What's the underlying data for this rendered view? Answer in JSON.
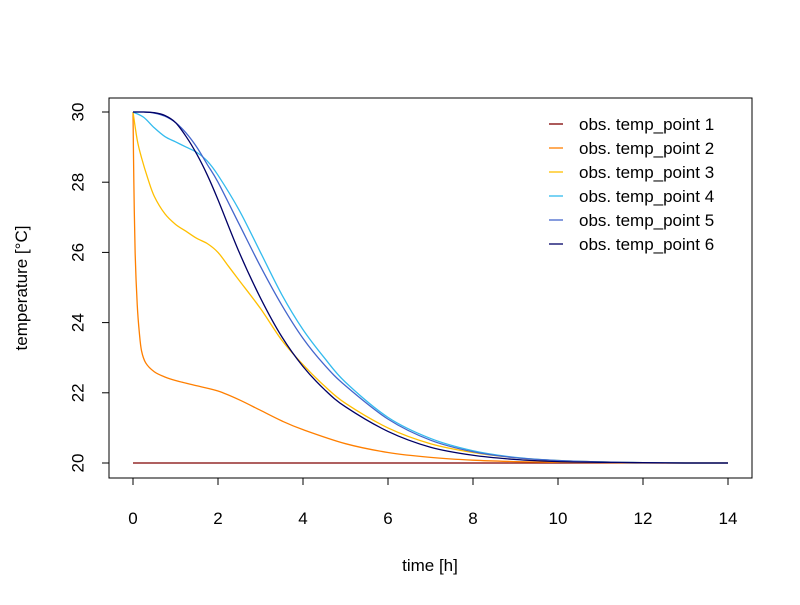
{
  "chart_data": {
    "type": "line",
    "title": "",
    "xlabel": "time [h]",
    "ylabel": "temperature [°C]",
    "xlim": [
      0,
      14
    ],
    "ylim": [
      20,
      30
    ],
    "x_ticks": [
      0,
      2,
      4,
      6,
      8,
      10,
      12,
      14
    ],
    "y_ticks": [
      20,
      22,
      24,
      26,
      28,
      30
    ],
    "x_tick_labels": [
      "0",
      "2",
      "4",
      "6",
      "8",
      "10",
      "12",
      "14"
    ],
    "y_tick_labels": [
      "20",
      "22",
      "24",
      "26",
      "28",
      "30"
    ],
    "grid": false,
    "legend_position": "top-right",
    "series": [
      {
        "name": "obs. temp_point 1",
        "color": "#7f0000",
        "x": [
          0,
          14
        ],
        "y": [
          20.0,
          20.0
        ]
      },
      {
        "name": "obs. temp_point 2",
        "color": "#ff7f00",
        "x": [
          0,
          0.02,
          0.05,
          0.1,
          0.15,
          0.2,
          0.3,
          0.5,
          0.75,
          1,
          1.5,
          2,
          2.5,
          3,
          3.5,
          4,
          5,
          6,
          7,
          8,
          9,
          10,
          11,
          12,
          13,
          14
        ],
        "y": [
          30.0,
          28.0,
          26.0,
          24.5,
          23.7,
          23.2,
          22.85,
          22.6,
          22.45,
          22.35,
          22.2,
          22.05,
          21.8,
          21.5,
          21.2,
          20.95,
          20.55,
          20.3,
          20.16,
          20.08,
          20.04,
          20.02,
          20.01,
          20.0,
          20.0,
          20.0
        ]
      },
      {
        "name": "obs. temp_point 3",
        "color": "#ffbf00",
        "x": [
          0,
          0.1,
          0.2,
          0.35,
          0.5,
          0.75,
          1,
          1.25,
          1.5,
          1.75,
          2,
          2.25,
          2.5,
          3,
          3.5,
          4,
          4.5,
          5,
          6,
          7,
          8,
          9,
          10,
          11,
          12,
          13,
          14
        ],
        "y": [
          30.0,
          29.2,
          28.7,
          28.1,
          27.6,
          27.1,
          26.8,
          26.6,
          26.4,
          26.25,
          26.0,
          25.6,
          25.2,
          24.4,
          23.5,
          22.8,
          22.2,
          21.7,
          21.0,
          20.55,
          20.3,
          20.15,
          20.07,
          20.03,
          20.01,
          20.0,
          20.0
        ]
      },
      {
        "name": "obs. temp_point 4",
        "color": "#33bbee",
        "x": [
          0,
          0.25,
          0.5,
          0.75,
          1,
          1.25,
          1.5,
          1.75,
          2,
          2.5,
          3,
          3.5,
          4,
          4.5,
          5,
          6,
          7,
          8,
          9,
          10,
          11,
          12,
          13,
          14
        ],
        "y": [
          30.0,
          29.85,
          29.55,
          29.3,
          29.15,
          29.0,
          28.85,
          28.6,
          28.2,
          27.2,
          26.0,
          24.8,
          23.8,
          23.0,
          22.3,
          21.3,
          20.7,
          20.35,
          20.16,
          20.07,
          20.03,
          20.01,
          20.0,
          20.0
        ]
      },
      {
        "name": "obs. temp_point 5",
        "color": "#4466cc",
        "x": [
          0,
          0.25,
          0.5,
          0.75,
          1,
          1.25,
          1.5,
          1.75,
          2,
          2.5,
          3,
          3.5,
          4,
          4.5,
          5,
          6,
          7,
          8,
          9,
          10,
          11,
          12,
          13,
          14
        ],
        "y": [
          30.0,
          30.0,
          29.97,
          29.88,
          29.7,
          29.4,
          29.0,
          28.5,
          28.0,
          26.8,
          25.6,
          24.5,
          23.55,
          22.8,
          22.2,
          21.25,
          20.65,
          20.32,
          20.15,
          20.07,
          20.03,
          20.01,
          20.0,
          20.0
        ]
      },
      {
        "name": "obs. temp_point 6",
        "color": "#000066",
        "x": [
          0,
          0.25,
          0.5,
          0.75,
          1,
          1.25,
          1.5,
          1.75,
          2,
          2.5,
          3,
          3.5,
          4,
          4.5,
          5,
          6,
          7,
          8,
          9,
          10,
          11,
          12,
          13,
          14
        ],
        "y": [
          30.0,
          30.0,
          29.98,
          29.9,
          29.7,
          29.3,
          28.8,
          28.2,
          27.5,
          26.0,
          24.7,
          23.6,
          22.75,
          22.1,
          21.6,
          20.9,
          20.45,
          20.22,
          20.1,
          20.04,
          20.02,
          20.01,
          20.0,
          20.0
        ]
      }
    ]
  }
}
